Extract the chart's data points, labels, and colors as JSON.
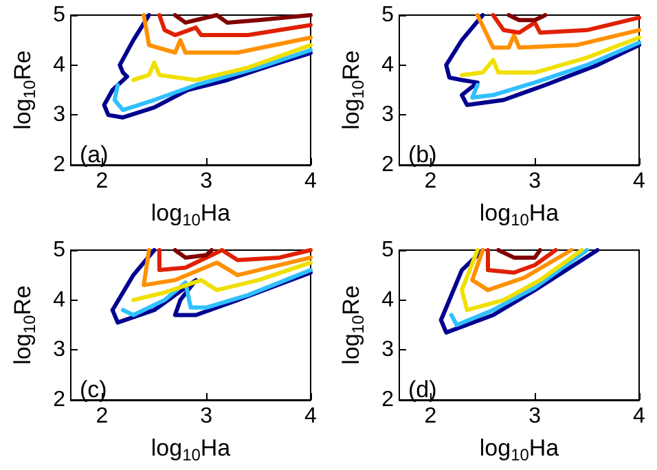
{
  "chart_data": [
    {
      "type": "line",
      "xlabel": "log$_{10}$Ha",
      "ylabel": "log$_{10}$Re",
      "xlim": [
        1.7,
        4
      ],
      "ylim": [
        2,
        5
      ],
      "xticks": [
        2,
        3,
        4
      ],
      "yticks": [
        2,
        3,
        4,
        5
      ],
      "grid": false,
      "annotations": [
        "(a)"
      ],
      "series": [
        {
          "color": "#00008f",
          "x": [
            2.45,
            2.3,
            2.17,
            2.2,
            2.24,
            2.1,
            2.02,
            2.06,
            2.2,
            2.5,
            2.82,
            3.2,
            3.6,
            4.0
          ],
          "values": [
            5,
            4.5,
            4.0,
            3.85,
            3.77,
            3.5,
            3.2,
            3.0,
            2.95,
            3.15,
            3.5,
            3.7,
            3.98,
            4.24
          ]
        },
        {
          "color": "#30c0ff",
          "x": [
            2.15,
            2.12,
            2.2,
            2.5,
            2.9,
            3.5,
            4.0
          ],
          "values": [
            3.6,
            3.3,
            3.1,
            3.3,
            3.6,
            3.95,
            4.3
          ]
        },
        {
          "color": "#f0e000",
          "x": [
            2.3,
            2.45,
            2.5,
            2.55,
            2.9,
            3.4,
            4.0
          ],
          "values": [
            3.7,
            3.8,
            4.05,
            3.8,
            3.7,
            3.95,
            4.4
          ]
        },
        {
          "color": "#ff9000",
          "x": [
            2.4,
            2.45,
            2.7,
            2.75,
            2.8,
            3.3,
            4.0
          ],
          "values": [
            5,
            4.4,
            4.25,
            4.5,
            4.25,
            4.25,
            4.55
          ]
        },
        {
          "color": "#e02000",
          "x": [
            2.55,
            2.6,
            2.7,
            2.9,
            2.95,
            3.4,
            4.0
          ],
          "values": [
            5,
            4.7,
            4.6,
            4.75,
            4.6,
            4.6,
            4.8
          ]
        },
        {
          "color": "#800000",
          "x": [
            2.7,
            2.8,
            2.9,
            3.1,
            3.2,
            3.5,
            4.0
          ],
          "values": [
            5,
            4.85,
            4.9,
            5,
            4.85,
            4.9,
            5.0
          ]
        }
      ]
    },
    {
      "type": "line",
      "xlabel": "log$_{10}$Ha",
      "ylabel": "log$_{10}$Re",
      "xlim": [
        1.7,
        4
      ],
      "ylim": [
        2,
        5
      ],
      "xticks": [
        2,
        3,
        4
      ],
      "yticks": [
        2,
        3,
        4,
        5
      ],
      "grid": false,
      "annotations": [
        "(b)"
      ],
      "series": [
        {
          "color": "#00008f",
          "x": [
            2.5,
            2.3,
            2.15,
            2.18,
            2.3,
            2.45,
            2.3,
            2.35,
            2.7,
            3.1,
            3.6,
            4.0
          ],
          "values": [
            5,
            4.5,
            4.0,
            3.75,
            3.7,
            3.65,
            3.4,
            3.2,
            3.3,
            3.6,
            4.0,
            4.4
          ]
        },
        {
          "color": "#30c0ff",
          "x": [
            2.45,
            2.4,
            2.6,
            3.0,
            3.5,
            4.0
          ],
          "values": [
            3.6,
            3.35,
            3.4,
            3.65,
            4.0,
            4.45
          ]
        },
        {
          "color": "#f0e000",
          "x": [
            2.3,
            2.5,
            2.6,
            2.65,
            3.0,
            3.5,
            4.0
          ],
          "values": [
            3.8,
            3.85,
            4.1,
            3.85,
            3.85,
            4.15,
            4.55
          ]
        },
        {
          "color": "#ff9000",
          "x": [
            2.45,
            2.6,
            2.75,
            2.8,
            2.85,
            3.4,
            4.0
          ],
          "values": [
            5,
            4.35,
            4.35,
            4.6,
            4.35,
            4.4,
            4.7
          ]
        },
        {
          "color": "#e02000",
          "x": [
            2.6,
            2.7,
            2.85,
            3.0,
            3.05,
            3.5,
            4.0
          ],
          "values": [
            5,
            4.7,
            4.65,
            4.85,
            4.65,
            4.7,
            4.95
          ]
        },
        {
          "color": "#800000",
          "x": [
            2.75,
            2.85,
            3.0,
            3.1
          ],
          "values": [
            5,
            4.9,
            4.9,
            5
          ]
        }
      ]
    },
    {
      "type": "line",
      "xlabel": "log$_{10}$Ha",
      "ylabel": "log$_{10}$Re",
      "xlim": [
        1.7,
        4
      ],
      "ylim": [
        2,
        5
      ],
      "xticks": [
        2,
        3,
        4
      ],
      "yticks": [
        2,
        3,
        4,
        5
      ],
      "grid": false,
      "annotations": [
        "(c)"
      ],
      "series": [
        {
          "color": "#00008f",
          "x": [
            2.5,
            2.3,
            2.1,
            2.15,
            2.5,
            2.9,
            2.75,
            2.7,
            2.9,
            3.3,
            4.0
          ],
          "values": [
            5,
            4.5,
            3.8,
            3.55,
            3.8,
            4.4,
            4.0,
            3.7,
            3.7,
            4.0,
            4.55
          ]
        },
        {
          "color": "#30c0ff",
          "x": [
            2.2,
            2.3,
            2.6,
            2.8,
            2.85,
            3.0,
            3.4,
            4.0
          ],
          "values": [
            3.8,
            3.7,
            4.0,
            4.35,
            3.85,
            3.85,
            4.1,
            4.6
          ]
        },
        {
          "color": "#f0e000",
          "x": [
            2.3,
            2.6,
            2.95,
            3.1,
            3.5,
            4.0
          ],
          "values": [
            4.0,
            4.15,
            4.4,
            4.2,
            4.4,
            4.75
          ]
        },
        {
          "color": "#ff9000",
          "x": [
            2.45,
            2.4,
            2.7,
            3.1,
            3.3,
            4.0
          ],
          "values": [
            5,
            4.3,
            4.4,
            4.75,
            4.5,
            4.85
          ]
        },
        {
          "color": "#e02000",
          "x": [
            2.55,
            2.55,
            2.8,
            3.15,
            3.3,
            3.7,
            4.0
          ],
          "values": [
            5,
            4.6,
            4.65,
            5,
            4.8,
            4.85,
            5.0
          ]
        },
        {
          "color": "#800000",
          "x": [
            2.7,
            2.8,
            3.0,
            3.05
          ],
          "values": [
            5,
            4.85,
            4.9,
            5
          ]
        }
      ]
    },
    {
      "type": "line",
      "xlabel": "log$_{10}$Ha",
      "ylabel": "log$_{10}$Re",
      "xlim": [
        1.7,
        4
      ],
      "ylim": [
        2,
        5
      ],
      "xticks": [
        2,
        3,
        4
      ],
      "yticks": [
        2,
        3,
        4,
        5
      ],
      "grid": false,
      "annotations": [
        "(d)"
      ],
      "series": [
        {
          "color": "#00008f",
          "x": [
            2.5,
            2.3,
            2.1,
            2.15,
            2.6,
            3.0,
            3.6
          ],
          "values": [
            5,
            4.6,
            3.6,
            3.35,
            3.7,
            4.2,
            5
          ]
        },
        {
          "color": "#30c0ff",
          "x": [
            2.2,
            2.25,
            2.6,
            3.0,
            3.5
          ],
          "values": [
            3.7,
            3.5,
            3.8,
            4.25,
            5
          ]
        },
        {
          "color": "#f0e000",
          "x": [
            2.45,
            2.3,
            2.35,
            2.7,
            3.05,
            3.45
          ],
          "values": [
            5,
            4.2,
            3.8,
            4.0,
            4.4,
            5
          ]
        },
        {
          "color": "#ff9000",
          "x": [
            2.5,
            2.4,
            2.55,
            2.9,
            3.35
          ],
          "values": [
            5,
            4.4,
            4.2,
            4.45,
            5
          ]
        },
        {
          "color": "#e02000",
          "x": [
            2.55,
            2.55,
            2.8,
            3.0,
            3.2
          ],
          "values": [
            5,
            4.6,
            4.55,
            4.7,
            5
          ]
        },
        {
          "color": "#800000",
          "x": [
            2.65,
            2.8,
            3.0,
            3.05
          ],
          "values": [
            5,
            4.85,
            4.85,
            5
          ]
        }
      ]
    }
  ]
}
